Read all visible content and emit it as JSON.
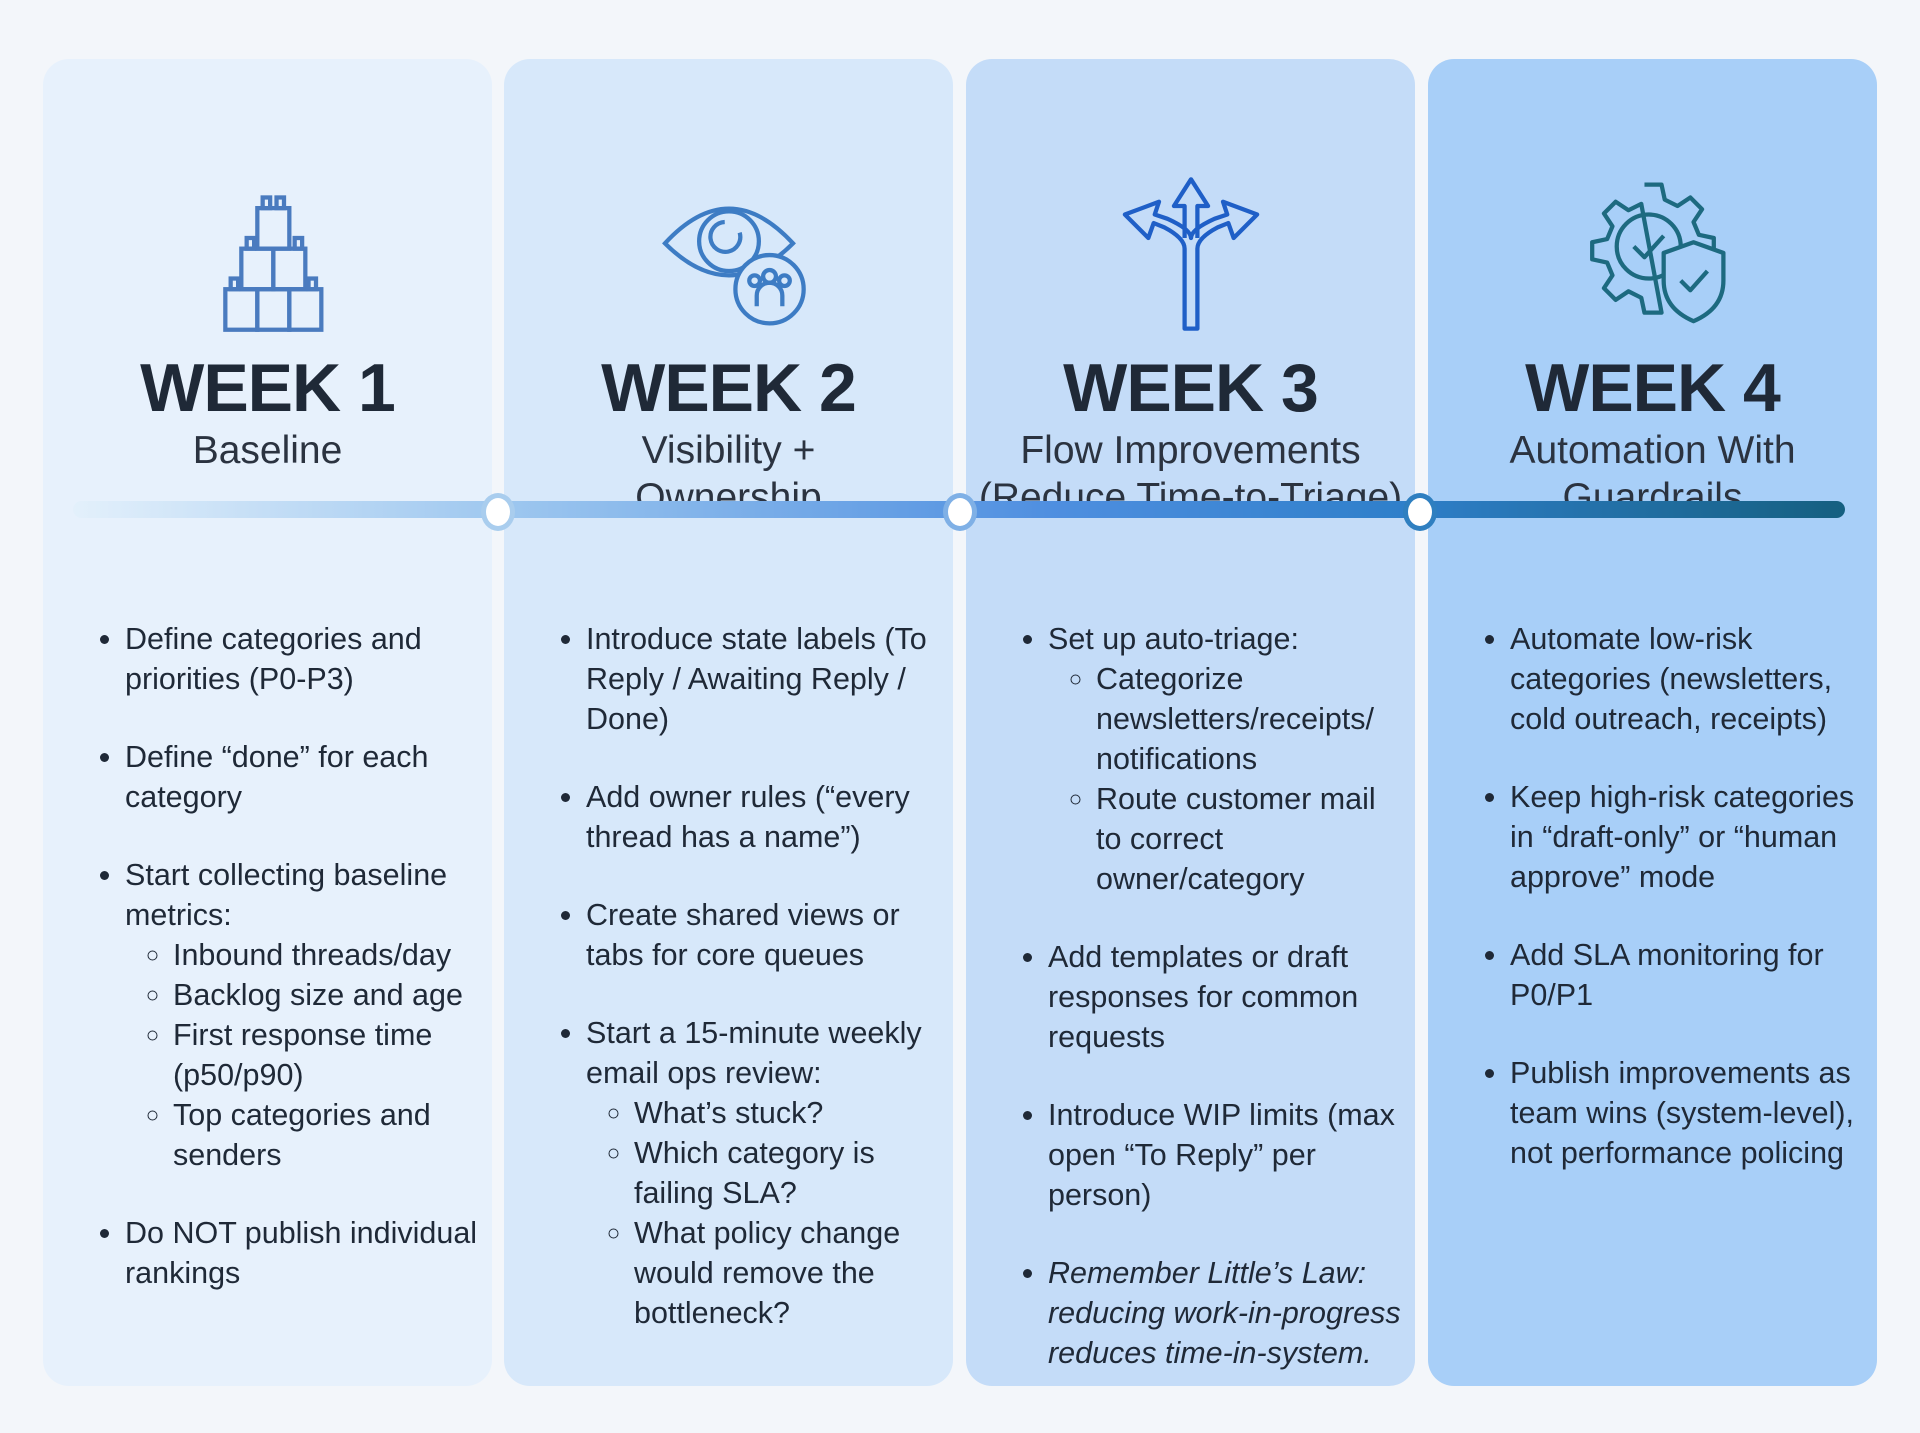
{
  "colors": {
    "page_bg": "#f3f6fa",
    "column_bgs": [
      "#e7f1fc",
      "#d7e8fa",
      "#c4dcf8",
      "#a8cff8"
    ],
    "icon_colors": [
      "#4a7bbf",
      "#3d7cc4",
      "#1f5fc7",
      "#1d6a80"
    ],
    "timeline_gradient": [
      "#e3f0fb",
      "#9cc6ef",
      "#4f8fe0",
      "#2f7fca",
      "#155f80"
    ],
    "node_borders": [
      "#a9cdee",
      "#7fb0e6",
      "#2f7fc0"
    ]
  },
  "columns": [
    {
      "icon": "building-blocks-icon",
      "week": "WEEK 1",
      "subtitle": [
        "Baseline"
      ],
      "bullets": [
        {
          "text": "Define categories and priorities (P0-P3)"
        },
        {
          "text": "Define “done” for each category"
        },
        {
          "text": "Start collecting baseline metrics:",
          "sub": [
            "Inbound threads/day",
            "Backlog size and age",
            "First response time (p50/p90)",
            "Top categories and senders"
          ]
        },
        {
          "text": "Do NOT publish individual rankings"
        }
      ]
    },
    {
      "icon": "eye-team-icon",
      "week": "WEEK 2",
      "subtitle": [
        "Visibility +",
        "Ownership"
      ],
      "bullets": [
        {
          "text": "Introduce state labels (To Reply / Awaiting Reply / Done)"
        },
        {
          "text": "Add owner rules (“every thread has a name”)"
        },
        {
          "text": "Create shared views or tabs for core queues"
        },
        {
          "text": "Start a 15-minute weekly email ops review:",
          "sub": [
            "What’s stuck?",
            "Which category is failing SLA?",
            "What policy change would remove the bottleneck?"
          ]
        }
      ]
    },
    {
      "icon": "split-arrows-icon",
      "week": "WEEK 3",
      "subtitle": [
        "Flow Improvements",
        "(Reduce Time-to-Triage)"
      ],
      "bullets": [
        {
          "text": "Set up auto-triage:",
          "sub": [
            "Categorize newsletters/receipts/ notifications",
            "Route customer mail to correct owner/category"
          ]
        },
        {
          "text": "Add templates or draft responses for common requests"
        },
        {
          "text": "Introduce WIP limits (max open “To Reply” per person)"
        },
        {
          "text": "Remember Little’s Law: reducing work-in-progress reduces time-in-system.",
          "italic": true
        }
      ]
    },
    {
      "icon": "gear-shield-check-icon",
      "week": "WEEK 4",
      "subtitle": [
        "Automation With",
        "Guardrails"
      ],
      "bullets": [
        {
          "text": "Automate low-risk categories (newsletters, cold outreach, receipts)"
        },
        {
          "text": "Keep high-risk categories in “draft-only” or “human approve” mode"
        },
        {
          "text": "Add SLA monitoring for P0/P1"
        },
        {
          "text": "Publish improvements as team wins (system-level), not performance policing"
        }
      ]
    }
  ]
}
